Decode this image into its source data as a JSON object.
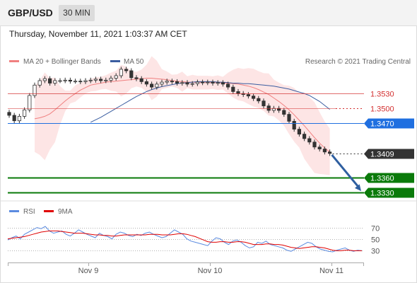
{
  "header": {
    "symbol": "GBP/USD",
    "timeframe": "30 MIN",
    "datetime": "Thursday, November 11, 2021 1:03:37 AM CET"
  },
  "legend": {
    "ma20_label": "MA 20 + Bollinger Bands",
    "ma50_label": "MA 50",
    "credit": "Research © 2021 Trading Central",
    "rsi_label": "RSI",
    "rsi_ma_label": "9MA"
  },
  "colors": {
    "ma20": "#f08080",
    "ma50": "#3a5da0",
    "band_fill": "#fde2e2",
    "resistance": "#d32f2f",
    "pivot": "#1f6fe0",
    "support": "#0a7a0a",
    "last_price": "#333333",
    "arrow": "#2f5fa0",
    "rsi": "#5b8be0",
    "rsi_ma": "#e00000"
  },
  "chart_data": [
    {
      "type": "candlestick",
      "title": "GBP/USD 30 MIN",
      "x_labels": [
        "Nov 9",
        "Nov 10",
        "Nov 11"
      ],
      "ylim": [
        1.3316,
        1.3576
      ],
      "indicators": [
        "MA 20 + Bollinger Bands",
        "MA 50"
      ],
      "levels": [
        {
          "value": "1.3530",
          "price": 1.353,
          "kind": "resistance"
        },
        {
          "value": "1.3500",
          "price": 1.35,
          "kind": "resistance"
        },
        {
          "value": "1.3470",
          "price": 1.347,
          "kind": "pivot"
        },
        {
          "value": "1.3409",
          "price": 1.3409,
          "kind": "last"
        },
        {
          "value": "1.3360",
          "price": 1.336,
          "kind": "support"
        },
        {
          "value": "1.3330",
          "price": 1.333,
          "kind": "support"
        }
      ],
      "forecast": "down toward 1.3330",
      "close": [
        1.3486,
        1.3475,
        1.3484,
        1.3497,
        1.3526,
        1.3547,
        1.3556,
        1.356,
        1.3551,
        1.3556,
        1.3556,
        1.3557,
        1.3555,
        1.3555,
        1.3554,
        1.3556,
        1.3557,
        1.3559,
        1.3556,
        1.3557,
        1.3561,
        1.3566,
        1.3579,
        1.3576,
        1.3562,
        1.356,
        1.3554,
        1.3549,
        1.3543,
        1.3549,
        1.3553,
        1.3555,
        1.3554,
        1.3551,
        1.3552,
        1.3549,
        1.355,
        1.3553,
        1.3552,
        1.3553,
        1.3551,
        1.3552,
        1.3549,
        1.3543,
        1.3534,
        1.353,
        1.3528,
        1.3525,
        1.352,
        1.3515,
        1.3505,
        1.3496,
        1.35,
        1.3496,
        1.3488,
        1.3474,
        1.3458,
        1.3448,
        1.3439,
        1.3432,
        1.3422,
        1.3418,
        1.3412,
        1.3409
      ],
      "ma20": [
        1.3479,
        1.3481,
        1.3484,
        1.3489,
        1.3497,
        1.3506,
        1.3515,
        1.3523,
        1.353,
        1.3537,
        1.3542,
        1.3547,
        1.3549,
        1.3551,
        1.3553,
        1.3554,
        1.3555,
        1.3556,
        1.3557,
        1.3558,
        1.3559,
        1.356,
        1.3561,
        1.3561,
        1.356,
        1.3559,
        1.3558,
        1.3556,
        1.3555,
        1.3554,
        1.3553,
        1.3553,
        1.3552,
        1.3552,
        1.3552,
        1.3552,
        1.3552,
        1.3551,
        1.3551,
        1.355,
        1.3549,
        1.3547,
        1.3545,
        1.3542,
        1.3538,
        1.3533,
        1.3528,
        1.3521,
        1.3514,
        1.3506,
        1.3497,
        1.3487,
        1.3476,
        1.3465,
        1.3453,
        1.3441,
        1.343,
        1.342,
        1.3412
      ],
      "ma50": [
        1.3472,
        1.3477,
        1.3482,
        1.3488,
        1.3494,
        1.35,
        1.3506,
        1.3512,
        1.3518,
        1.3524,
        1.3529,
        1.3534,
        1.3538,
        1.3541,
        1.3544,
        1.3546,
        1.3548,
        1.355,
        1.3551,
        1.3552,
        1.3553,
        1.3554,
        1.3554,
        1.3554,
        1.3554,
        1.3553,
        1.3553,
        1.3552,
        1.3551,
        1.3551,
        1.355,
        1.355,
        1.3549,
        1.3548,
        1.3547,
        1.3546,
        1.3545,
        1.3543,
        1.3541,
        1.3539,
        1.3536,
        1.3533,
        1.353,
        1.3526,
        1.352,
        1.3514,
        1.3506,
        1.3498
      ]
    },
    {
      "type": "line",
      "title": "RSI",
      "series_names": [
        "RSI",
        "9MA"
      ],
      "yticks": [
        70,
        50,
        30
      ],
      "ylim": [
        12,
        82
      ],
      "rsi": [
        48,
        52,
        55,
        50,
        58,
        62,
        66,
        70,
        68,
        72,
        64,
        60,
        62,
        64,
        58,
        55,
        60,
        66,
        62,
        58,
        55,
        52,
        60,
        56,
        54,
        50,
        58,
        62,
        60,
        56,
        54,
        58,
        56,
        60,
        62,
        58,
        55,
        52,
        54,
        60,
        66,
        62,
        58,
        50,
        46,
        44,
        42,
        40,
        38,
        46,
        52,
        50,
        44,
        40,
        46,
        48,
        44,
        38,
        34,
        36,
        44,
        42,
        46,
        40,
        38,
        36,
        34,
        30,
        28,
        32,
        36,
        40,
        44,
        42,
        36,
        32,
        30,
        28,
        27,
        30,
        32,
        34,
        30,
        28,
        30,
        29
      ],
      "rsi_ma": [
        50,
        51,
        52,
        53,
        54,
        56,
        58,
        60,
        62,
        63,
        64,
        64,
        64,
        63,
        62,
        61,
        60,
        60,
        60,
        59,
        58,
        57,
        57,
        56,
        56,
        55,
        55,
        56,
        57,
        57,
        57,
        57,
        57,
        57,
        58,
        58,
        58,
        57,
        57,
        57,
        58,
        59,
        59,
        58,
        56,
        54,
        51,
        48,
        45,
        44,
        44,
        45,
        45,
        44,
        44,
        45,
        45,
        44,
        42,
        40,
        40,
        40,
        41,
        41,
        40,
        40,
        39,
        37,
        35,
        34,
        33,
        34,
        35,
        36,
        36,
        35,
        34,
        32,
        30,
        29,
        29,
        30,
        30,
        29,
        29,
        29
      ]
    }
  ]
}
